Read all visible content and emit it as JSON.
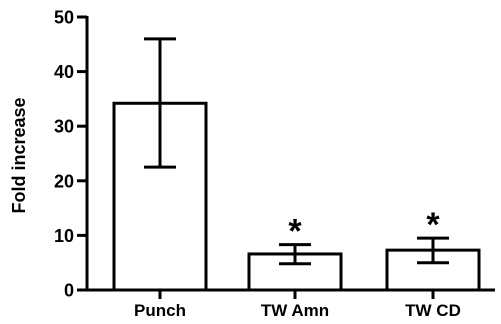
{
  "chart_data": {
    "type": "bar",
    "categories": [
      "Punch",
      "TW Amn",
      "TW CD"
    ],
    "values": [
      34.2,
      6.6,
      7.3
    ],
    "error_upper": [
      46.0,
      8.3,
      9.5
    ],
    "error_lower": [
      22.5,
      4.8,
      5.0
    ],
    "annotations": [
      "",
      "*",
      "*"
    ],
    "ylabel": "Fold increase",
    "xlabel": "",
    "ylim": [
      0,
      50
    ],
    "yticks": [
      0,
      10,
      20,
      30,
      40,
      50
    ],
    "ytick_labels": [
      "0",
      "10",
      "20",
      "30",
      "40",
      "50"
    ],
    "grid": false,
    "legend": "none",
    "bar_fill": "#ffffff",
    "stroke_color": "#000000"
  }
}
